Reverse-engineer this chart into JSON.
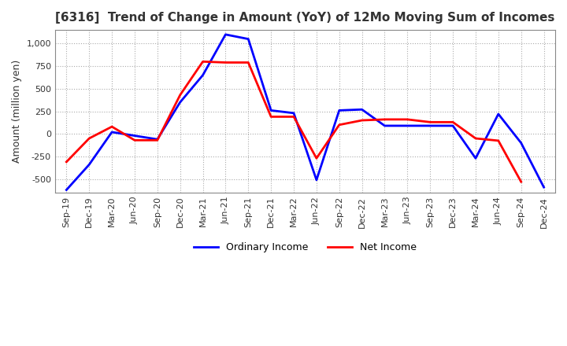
{
  "title": "[6316]  Trend of Change in Amount (YoY) of 12Mo Moving Sum of Incomes",
  "ylabel": "Amount (million yen)",
  "yticks": [
    1000,
    750,
    500,
    250,
    0,
    -250,
    -500
  ],
  "ylim": [
    -650,
    1150
  ],
  "x_labels": [
    "Sep-19",
    "Dec-19",
    "Mar-20",
    "Jun-20",
    "Sep-20",
    "Dec-20",
    "Mar-21",
    "Jun-21",
    "Sep-21",
    "Dec-21",
    "Mar-22",
    "Jun-22",
    "Sep-22",
    "Dec-22",
    "Mar-23",
    "Jun-23",
    "Sep-23",
    "Dec-23",
    "Mar-24",
    "Jun-24",
    "Sep-24",
    "Dec-24"
  ],
  "ordinary_income": [
    -620,
    -340,
    20,
    -20,
    -60,
    350,
    650,
    1100,
    1050,
    260,
    230,
    -510,
    260,
    270,
    90,
    90,
    90,
    90,
    -270,
    220,
    -100,
    -590
  ],
  "net_income": [
    -310,
    -50,
    80,
    -70,
    -70,
    430,
    800,
    790,
    790,
    190,
    190,
    -270,
    100,
    150,
    160,
    160,
    130,
    130,
    -50,
    -75,
    -530,
    null
  ],
  "ordinary_color": "#0000ff",
  "net_color": "#ff0000",
  "grid_color": "#aaaaaa",
  "spine_color": "#888888",
  "bg_color": "#ffffff",
  "title_color": "#333333",
  "legend_ordinary": "Ordinary Income",
  "legend_net": "Net Income"
}
